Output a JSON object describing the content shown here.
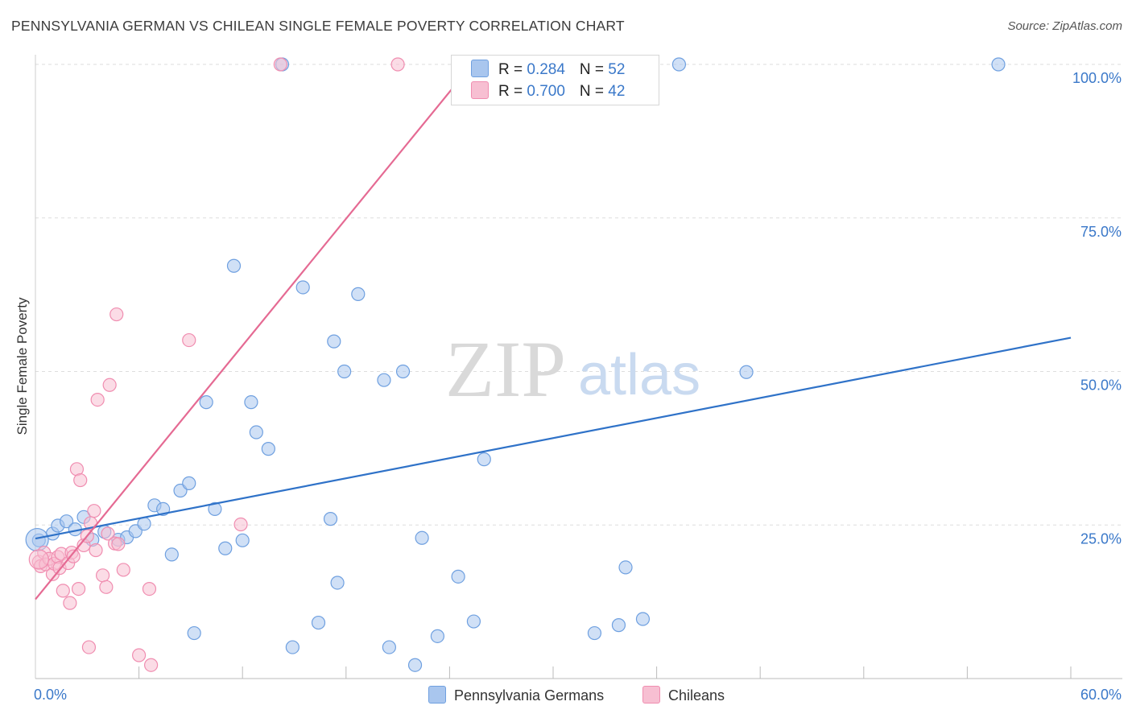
{
  "chart_data": {
    "type": "scatter",
    "title": "PENNSYLVANIA GERMAN VS CHILEAN SINGLE FEMALE POVERTY CORRELATION CHART",
    "source": "Source: ZipAtlas.com",
    "xlabel": "",
    "ylabel": "Single Female Poverty",
    "xlim": [
      0,
      60
    ],
    "ylim": [
      0,
      100
    ],
    "x_tick_labels": [
      "0.0%",
      "60.0%"
    ],
    "y_ticks": [
      25,
      50,
      75,
      100
    ],
    "y_tick_labels": [
      "25.0%",
      "50.0%",
      "75.0%",
      "100.0%"
    ],
    "watermark": {
      "part1": "ZIP",
      "part2": "atlas"
    },
    "legend_stats": [
      {
        "r_label": "R = ",
        "r_value": "0.284",
        "n_label": "N = ",
        "n_value": "52"
      },
      {
        "r_label": "R = ",
        "r_value": "0.700",
        "n_label": "N = ",
        "n_value": "42"
      }
    ],
    "series": [
      {
        "name": "Pennsylvania Germans",
        "color": "#6fa0e0",
        "fill": "#a9c6ee",
        "line_color": "#2f72c8",
        "trend": {
          "x1": 0,
          "y1": 22.8,
          "x2": 60,
          "y2": 55.5
        },
        "points": [
          [
            0.2,
            22.5
          ],
          [
            1.0,
            23.6
          ],
          [
            1.3,
            24.9
          ],
          [
            1.8,
            25.6
          ],
          [
            2.3,
            24.3
          ],
          [
            2.8,
            26.3
          ],
          [
            3.3,
            22.6
          ],
          [
            4.0,
            23.9
          ],
          [
            4.8,
            22.6
          ],
          [
            5.3,
            23.0
          ],
          [
            5.8,
            24.0
          ],
          [
            6.3,
            25.2
          ],
          [
            6.9,
            28.2
          ],
          [
            7.4,
            27.6
          ],
          [
            7.9,
            20.2
          ],
          [
            8.4,
            30.6
          ],
          [
            8.9,
            31.8
          ],
          [
            9.2,
            7.4
          ],
          [
            9.9,
            45.0
          ],
          [
            10.4,
            27.6
          ],
          [
            11.0,
            21.2
          ],
          [
            11.5,
            67.2
          ],
          [
            12.0,
            22.5
          ],
          [
            12.5,
            45.0
          ],
          [
            12.8,
            40.1
          ],
          [
            13.5,
            37.4
          ],
          [
            14.3,
            100.0
          ],
          [
            14.9,
            5.1
          ],
          [
            15.5,
            63.7
          ],
          [
            16.4,
            9.1
          ],
          [
            17.1,
            26.0
          ],
          [
            17.3,
            54.9
          ],
          [
            17.5,
            15.6
          ],
          [
            17.9,
            50.0
          ],
          [
            18.7,
            62.6
          ],
          [
            20.2,
            48.6
          ],
          [
            20.5,
            5.1
          ],
          [
            21.3,
            50.0
          ],
          [
            22.0,
            2.2
          ],
          [
            22.4,
            22.9
          ],
          [
            23.3,
            6.9
          ],
          [
            24.5,
            16.6
          ],
          [
            25.4,
            9.3
          ],
          [
            26.0,
            35.7
          ],
          [
            32.4,
            7.4
          ],
          [
            33.8,
            8.7
          ],
          [
            34.2,
            18.1
          ],
          [
            35.2,
            9.7
          ],
          [
            37.3,
            100.0
          ],
          [
            41.2,
            49.9
          ],
          [
            55.8,
            100.0
          ]
        ]
      },
      {
        "name": "Chileans",
        "color": "#f08db0",
        "fill": "#f7bfd2",
        "line_color": "#e56a93",
        "trend": {
          "x1": 0,
          "y1": 12.9,
          "x2": 25.3,
          "y2": 100
        },
        "points": [
          [
            0.2,
            19.0
          ],
          [
            0.3,
            18.3
          ],
          [
            0.5,
            20.5
          ],
          [
            0.6,
            18.6
          ],
          [
            0.8,
            19.5
          ],
          [
            1.0,
            17.0
          ],
          [
            1.1,
            18.7
          ],
          [
            1.3,
            19.8
          ],
          [
            1.4,
            18.0
          ],
          [
            1.5,
            20.3
          ],
          [
            1.6,
            14.3
          ],
          [
            1.9,
            18.8
          ],
          [
            2.0,
            12.3
          ],
          [
            2.1,
            20.5
          ],
          [
            2.2,
            19.9
          ],
          [
            2.4,
            34.1
          ],
          [
            2.5,
            14.6
          ],
          [
            2.6,
            32.3
          ],
          [
            2.8,
            21.7
          ],
          [
            3.0,
            23.2
          ],
          [
            3.1,
            5.1
          ],
          [
            3.2,
            25.3
          ],
          [
            3.4,
            27.3
          ],
          [
            3.5,
            20.9
          ],
          [
            3.6,
            45.4
          ],
          [
            3.9,
            16.8
          ],
          [
            4.1,
            14.9
          ],
          [
            4.2,
            23.6
          ],
          [
            4.3,
            47.8
          ],
          [
            4.6,
            22.0
          ],
          [
            4.7,
            59.3
          ],
          [
            4.8,
            21.9
          ],
          [
            5.1,
            17.7
          ],
          [
            6.0,
            3.8
          ],
          [
            6.6,
            14.6
          ],
          [
            6.7,
            2.2
          ],
          [
            8.9,
            55.1
          ],
          [
            11.9,
            25.1
          ],
          [
            14.2,
            100.0
          ],
          [
            21.0,
            100.0
          ]
        ]
      }
    ]
  }
}
